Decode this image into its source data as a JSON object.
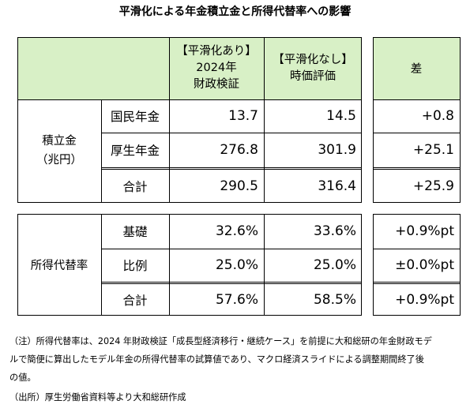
{
  "title": "平滑化による年金積立金と所得代替率への影響",
  "header": {
    "col_with": [
      "【平滑化あり】",
      "2024年",
      "財政検証"
    ],
    "col_without": [
      "【平滑化なし】",
      "時価評価"
    ],
    "col_diff": "差"
  },
  "reserves": {
    "group_label": [
      "積立金",
      "（兆円）"
    ],
    "rows": [
      {
        "label": "国民年金",
        "with": "13.7",
        "without": "14.5",
        "diff": "+0.8"
      },
      {
        "label": "厚生年金",
        "with": "276.8",
        "without": "301.9",
        "diff": "+25.1"
      },
      {
        "label": "合計",
        "with": "290.5",
        "without": "316.4",
        "diff": "+25.9"
      }
    ]
  },
  "replacement": {
    "group_label": "所得代替率",
    "rows": [
      {
        "label": "基礎",
        "with": "32.6%",
        "without": "33.6%",
        "diff": "+0.9%pt"
      },
      {
        "label": "比例",
        "with": "25.0%",
        "without": "25.0%",
        "diff": "±0.0%pt"
      },
      {
        "label": "合計",
        "with": "57.6%",
        "without": "58.5%",
        "diff": "+0.9%pt"
      }
    ]
  },
  "notes": {
    "note_lines": [
      "（注）所得代替率は、2024 年財政検証「成長型経済移行・継続ケース」を前提に大和総研の年金財政モデ",
      "ルで簡便に算出したモデル年金の所得代替率の試算値であり、マクロ経済スライドによる調整期間終了後",
      "の値。"
    ],
    "source": "（出所）厚生労働省資料等より大和総研作成"
  },
  "colors": {
    "header_fill": "#d8f0c6",
    "border": "#000000"
  }
}
